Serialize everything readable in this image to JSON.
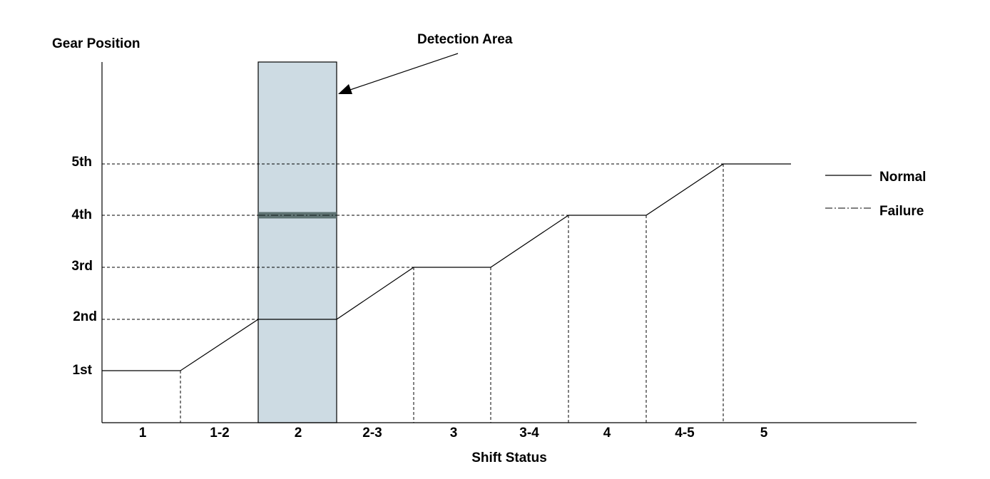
{
  "y_axis": {
    "title": "Gear Position",
    "labels": [
      "1st",
      "2nd",
      "3rd",
      "4th",
      "5th"
    ]
  },
  "x_axis": {
    "title": "Shift Status",
    "labels": [
      "1",
      "1-2",
      "2",
      "2-3",
      "3",
      "3-4",
      "4",
      "4-5",
      "5"
    ]
  },
  "annotation": "Detection Area",
  "legend": [
    "Normal",
    "Failure"
  ]
}
